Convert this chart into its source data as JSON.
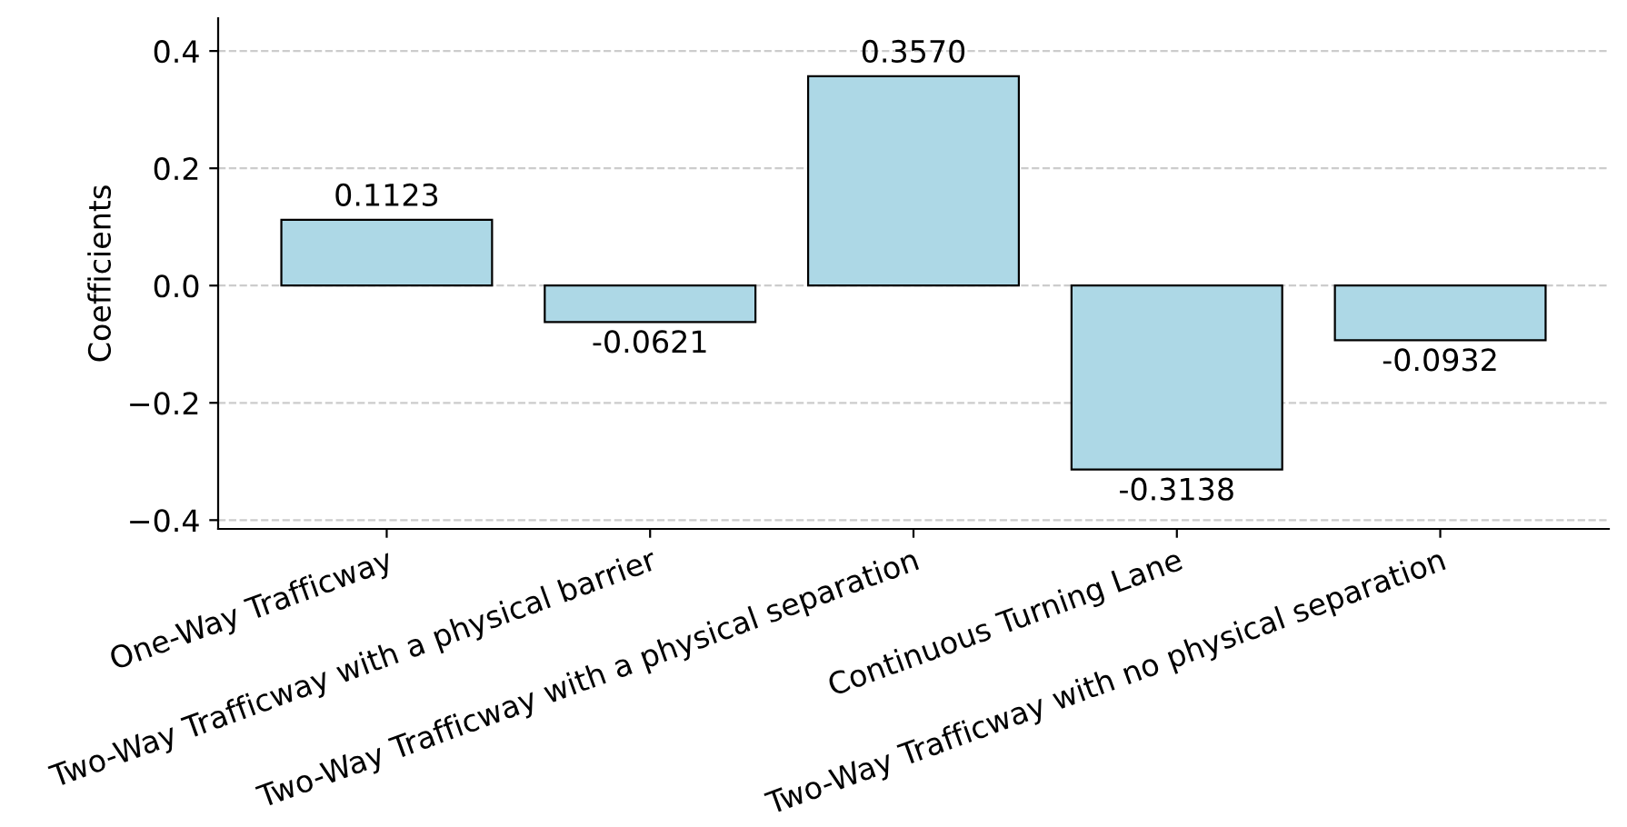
{
  "chart_data": {
    "type": "bar",
    "ylabel": "Coefficients",
    "categories": [
      "One-Way Trafficway",
      "Two-Way Trafficway with a physical barrier",
      "Two-Way Trafficway with a physical separation",
      "Continuous Turning Lane",
      "Two-Way Trafficway with no physical separation"
    ],
    "values": [
      0.1123,
      -0.0621,
      0.357,
      -0.3138,
      -0.0932
    ],
    "value_labels": [
      "0.1123",
      "-0.0621",
      "0.3570",
      "-0.3138",
      "-0.0932"
    ],
    "color": "#add8e6",
    "ylim": [
      -0.415,
      0.456
    ],
    "yticks": [
      {
        "value": -0.4,
        "label": "−0.4"
      },
      {
        "value": -0.2,
        "label": "−0.2"
      },
      {
        "value": 0.0,
        "label": "0.0"
      },
      {
        "value": 0.2,
        "label": "0.2"
      },
      {
        "value": 0.4,
        "label": "0.4"
      }
    ],
    "grid": "y"
  }
}
